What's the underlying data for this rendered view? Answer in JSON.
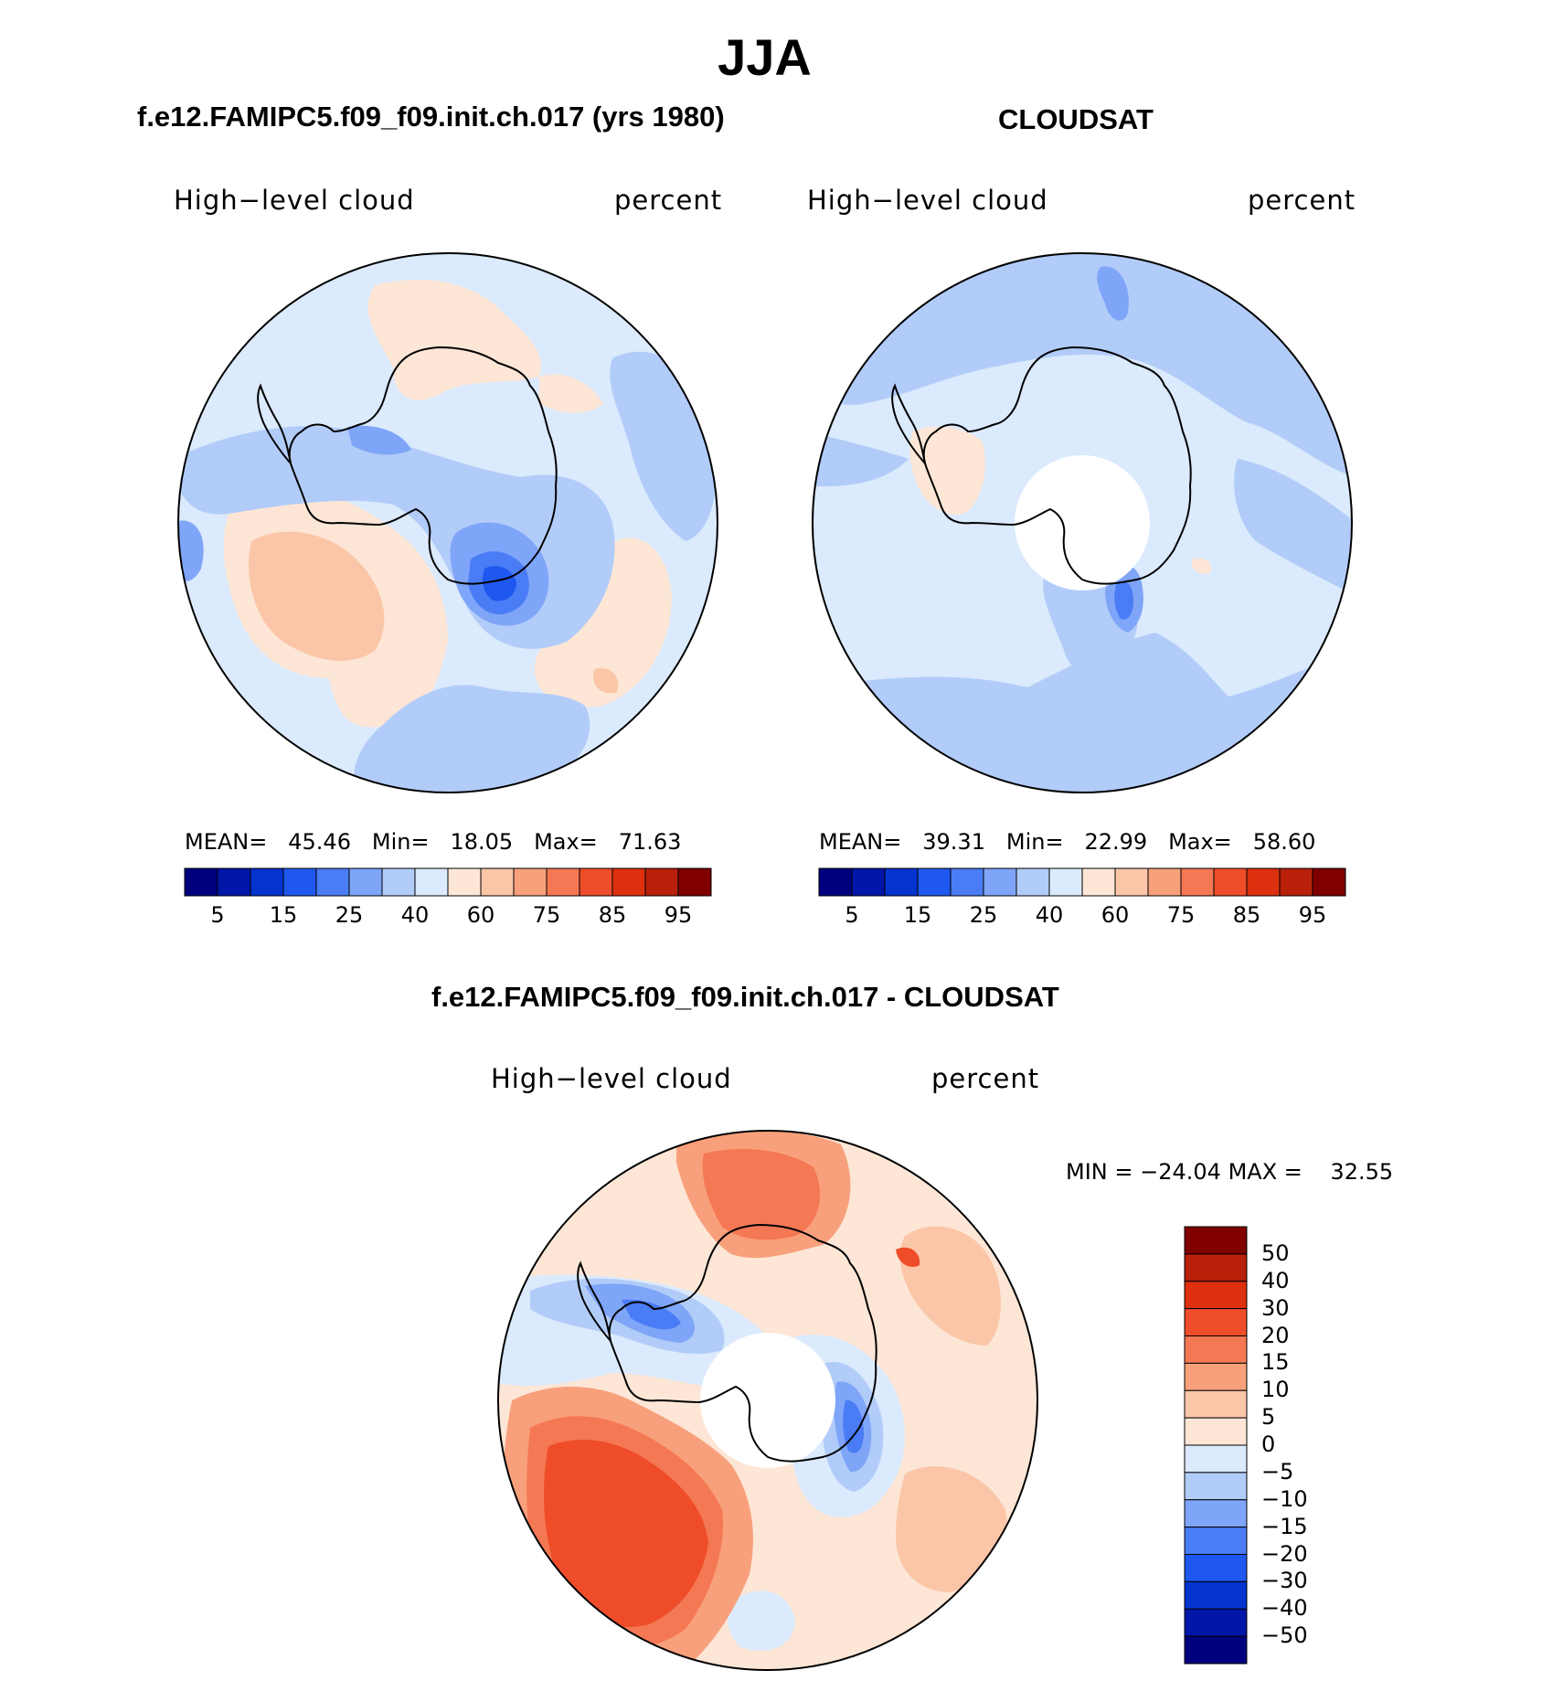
{
  "figure": {
    "season": "JJA"
  },
  "panels": [
    {
      "title": "f.e12.FAMIPC5.f09_f09.init.ch.017 (yrs 1980)",
      "variable_label": "High−level cloud",
      "units_label": "percent",
      "stats": {
        "mean_label": "MEAN=",
        "mean": "45.46",
        "min_label": "Min=",
        "min": "18.05",
        "max_label": "Max=",
        "max": "71.63"
      }
    },
    {
      "title": "CLOUDSAT",
      "variable_label": "High−level cloud",
      "units_label": "percent",
      "stats": {
        "mean_label": "MEAN=",
        "mean": "39.31",
        "min_label": "Min=",
        "min": "22.99",
        "max_label": "Max=",
        "max": "58.60"
      }
    },
    {
      "title": "f.e12.FAMIPC5.f09_f09.init.ch.017 - CLOUDSAT",
      "variable_label": "High−level cloud",
      "units_label": "percent",
      "stats": {
        "min_label": "MIN =",
        "min": "−24.04",
        "max_label": "MAX =",
        "max": "32.55"
      }
    }
  ],
  "colorbars": {
    "absolute": {
      "colors": [
        "#00007f",
        "#0016a8",
        "#0433cf",
        "#1e58f0",
        "#4a7cf5",
        "#7fa5f8",
        "#b2ccf9",
        "#dbeafc",
        "#fde6d6",
        "#fbc6a8",
        "#f8a07b",
        "#f47853",
        "#ef4d2a",
        "#dc300f",
        "#b8200a",
        "#800000"
      ],
      "tick_labels": [
        "5",
        "15",
        "25",
        "40",
        "60",
        "75",
        "85",
        "95"
      ]
    },
    "difference": {
      "colors_top_to_bottom": [
        "#800000",
        "#b8200a",
        "#dc300f",
        "#ef4d2a",
        "#f47853",
        "#f8a07b",
        "#fbc6a8",
        "#fde6d6",
        "#dbeafc",
        "#b2ccf9",
        "#7fa5f8",
        "#4a7cf5",
        "#1e58f0",
        "#0433cf",
        "#0016a8",
        "#00007f"
      ],
      "tick_labels": [
        "50",
        "40",
        "30",
        "20",
        "15",
        "10",
        "5",
        "0",
        "−5",
        "−10",
        "−15",
        "−20",
        "−30",
        "−40",
        "−50"
      ]
    }
  },
  "maps": [
    {
      "name": "model-map",
      "fill": "#dbeafc",
      "has_pole_hole": false
    },
    {
      "name": "cloudsat-map",
      "fill": "#dbeafc",
      "has_pole_hole": true
    },
    {
      "name": "difference-map",
      "fill": "#fde6d6",
      "has_pole_hole": true
    }
  ]
}
